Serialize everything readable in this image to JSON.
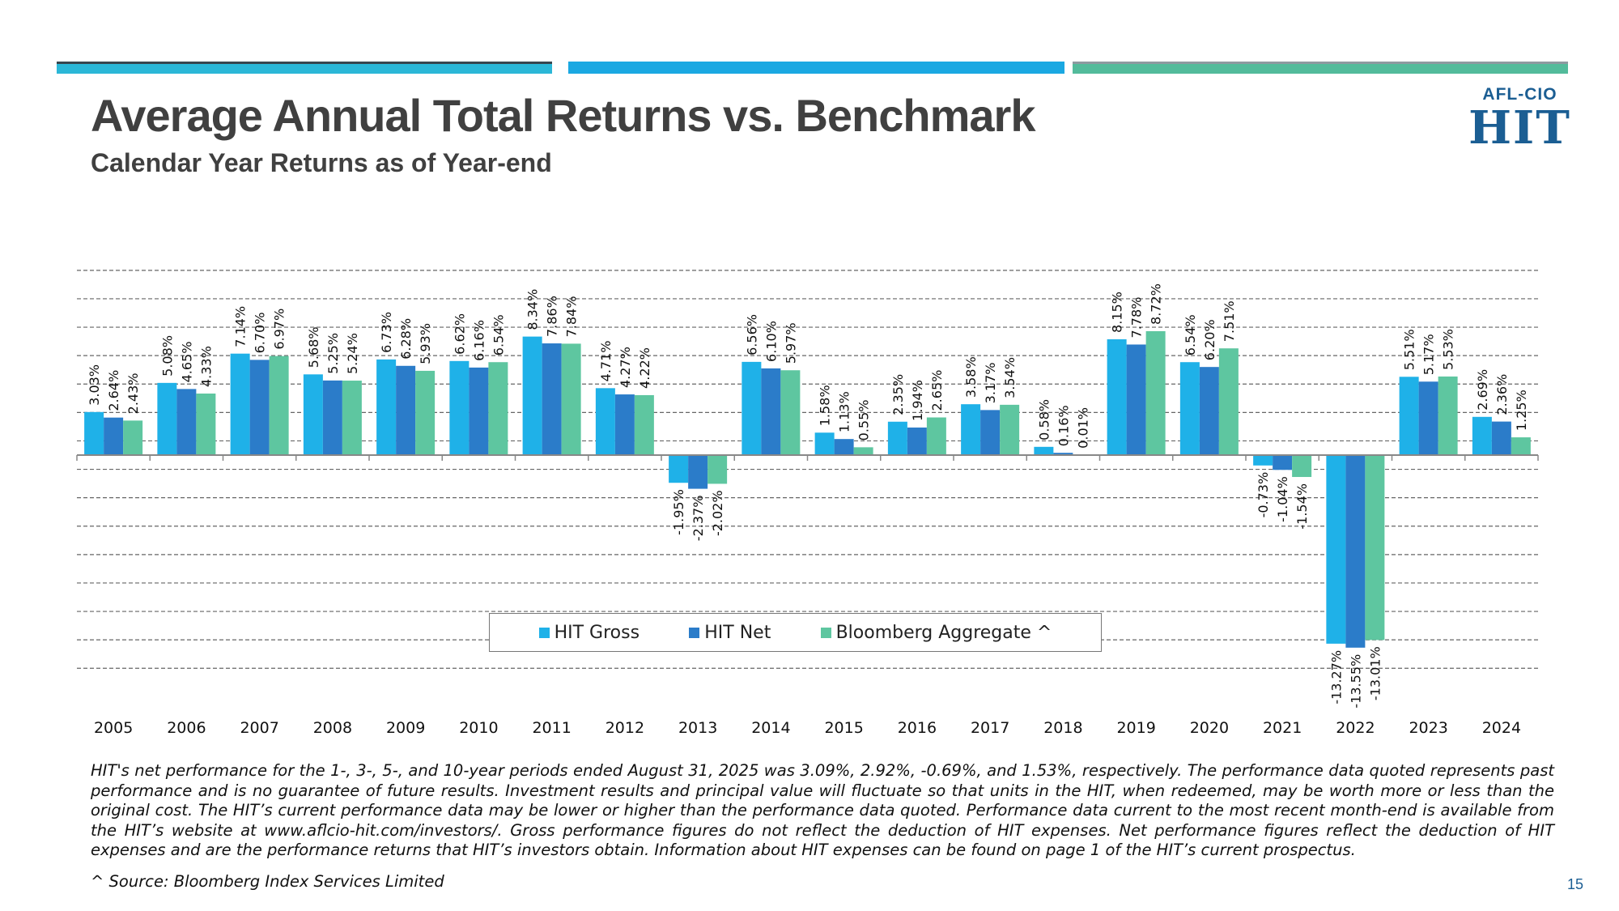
{
  "title": "Average Annual Total Returns vs. Benchmark",
  "subtitle": "Calendar Year Returns as of Year-end",
  "logo": {
    "top_text": "AFL-CIO",
    "main_text": "HIT"
  },
  "colors": {
    "hit_gross": "#1fb1e8",
    "hit_net": "#2b7cc9",
    "benchmark": "#5ec6a0",
    "accent_teal": "#2bb7d7",
    "accent_blue": "#1aa8e2",
    "accent_green": "#53bb9b",
    "logo_blue": "#1b5e93"
  },
  "chart_data": {
    "type": "bar",
    "categories": [
      "2005",
      "2006",
      "2007",
      "2008",
      "2009",
      "2010",
      "2011",
      "2012",
      "2013",
      "2014",
      "2015",
      "2016",
      "2017",
      "2018",
      "2019",
      "2020",
      "2021",
      "2022",
      "2023",
      "2024"
    ],
    "series": [
      {
        "name": "HIT Gross",
        "color": "#1fb1e8",
        "values": [
          3.03,
          5.08,
          7.14,
          5.68,
          6.73,
          6.62,
          8.34,
          4.71,
          -1.95,
          6.56,
          1.58,
          2.35,
          3.58,
          0.58,
          8.15,
          6.54,
          -0.73,
          -13.27,
          5.51,
          2.69
        ]
      },
      {
        "name": "HIT Net",
        "color": "#2b7cc9",
        "values": [
          2.64,
          4.65,
          6.7,
          5.25,
          6.28,
          6.16,
          7.86,
          4.27,
          -2.37,
          6.1,
          1.13,
          1.94,
          3.17,
          0.16,
          7.78,
          6.2,
          -1.04,
          -13.55,
          5.17,
          2.36
        ]
      },
      {
        "name": "Bloomberg Aggregate ^",
        "color": "#5ec6a0",
        "values": [
          2.43,
          4.33,
          6.97,
          5.24,
          5.93,
          6.54,
          7.84,
          4.22,
          -2.02,
          5.97,
          0.55,
          2.65,
          3.54,
          0.01,
          8.72,
          7.51,
          -1.54,
          -13.01,
          5.53,
          1.25
        ]
      }
    ],
    "value_labels": [
      [
        "3.03%",
        "2.64%",
        "2.43%"
      ],
      [
        "5.08%",
        "4.65%",
        "4.33%"
      ],
      [
        "7.14%",
        "6.70%",
        "6.97%"
      ],
      [
        "5.68%",
        "5.25%",
        "5.24%"
      ],
      [
        "6.73%",
        "6.28%",
        "5.93%"
      ],
      [
        "6.62%",
        "6.16%",
        "6.54%"
      ],
      [
        "8.34%",
        "7.86%",
        "7.84%"
      ],
      [
        "4.71%",
        "4.27%",
        "4.22%"
      ],
      [
        "-1.95%",
        "-2.37%",
        "-2.02%"
      ],
      [
        "6.56%",
        "6.10%",
        "5.97%"
      ],
      [
        "1.58%",
        "1.13%",
        "0.55%"
      ],
      [
        "2.35%",
        "1.94%",
        "2.65%"
      ],
      [
        "3.58%",
        "3.17%",
        "3.54%"
      ],
      [
        "0.58%",
        "0.16%",
        "0.01%"
      ],
      [
        "8.15%",
        "7.78%",
        "8.72%"
      ],
      [
        "6.54%",
        "6.20%",
        "7.51%"
      ],
      [
        "-0.73%",
        "-1.04%",
        "-1.54%"
      ],
      [
        "-13.27%",
        "-13.55%",
        "-13.01%"
      ],
      [
        "5.51%",
        "5.17%",
        "5.53%"
      ],
      [
        "2.69%",
        "2.36%",
        "1.25%"
      ]
    ],
    "ylim": [
      -15,
      13
    ],
    "gridlines": [
      -15,
      -13,
      -11,
      -9,
      -7,
      -5,
      -3,
      -1,
      1,
      3,
      5,
      7,
      9,
      11,
      13
    ],
    "grid": "dashed",
    "legend_position": "bottom-center",
    "xlabel": "",
    "ylabel": ""
  },
  "disclaimer": "HIT's net performance for the 1-, 3-, 5-, and 10-year periods ended August 31, 2025 was 3.09%, 2.92%, -0.69%, and 1.53%, respectively. The performance data quoted represents past performance and is no guarantee of future results. Investment results and principal value will fluctuate so that units in the HIT, when redeemed, may be worth more or less than the original cost. The HIT’s current performance data may be lower or higher than the performance data quoted. Performance data current to the most recent month-end is available from the HIT’s website at www.aflcio-hit.com/investors/. Gross performance figures do not reflect the deduction of HIT expenses.  Net performance figures reflect the deduction of HIT expenses and are the performance returns that HIT’s investors obtain.  Information about HIT expenses can be found on page 1 of the HIT’s current prospectus.",
  "source_note": "^ Source: Bloomberg Index Services Limited",
  "page_number": "15"
}
